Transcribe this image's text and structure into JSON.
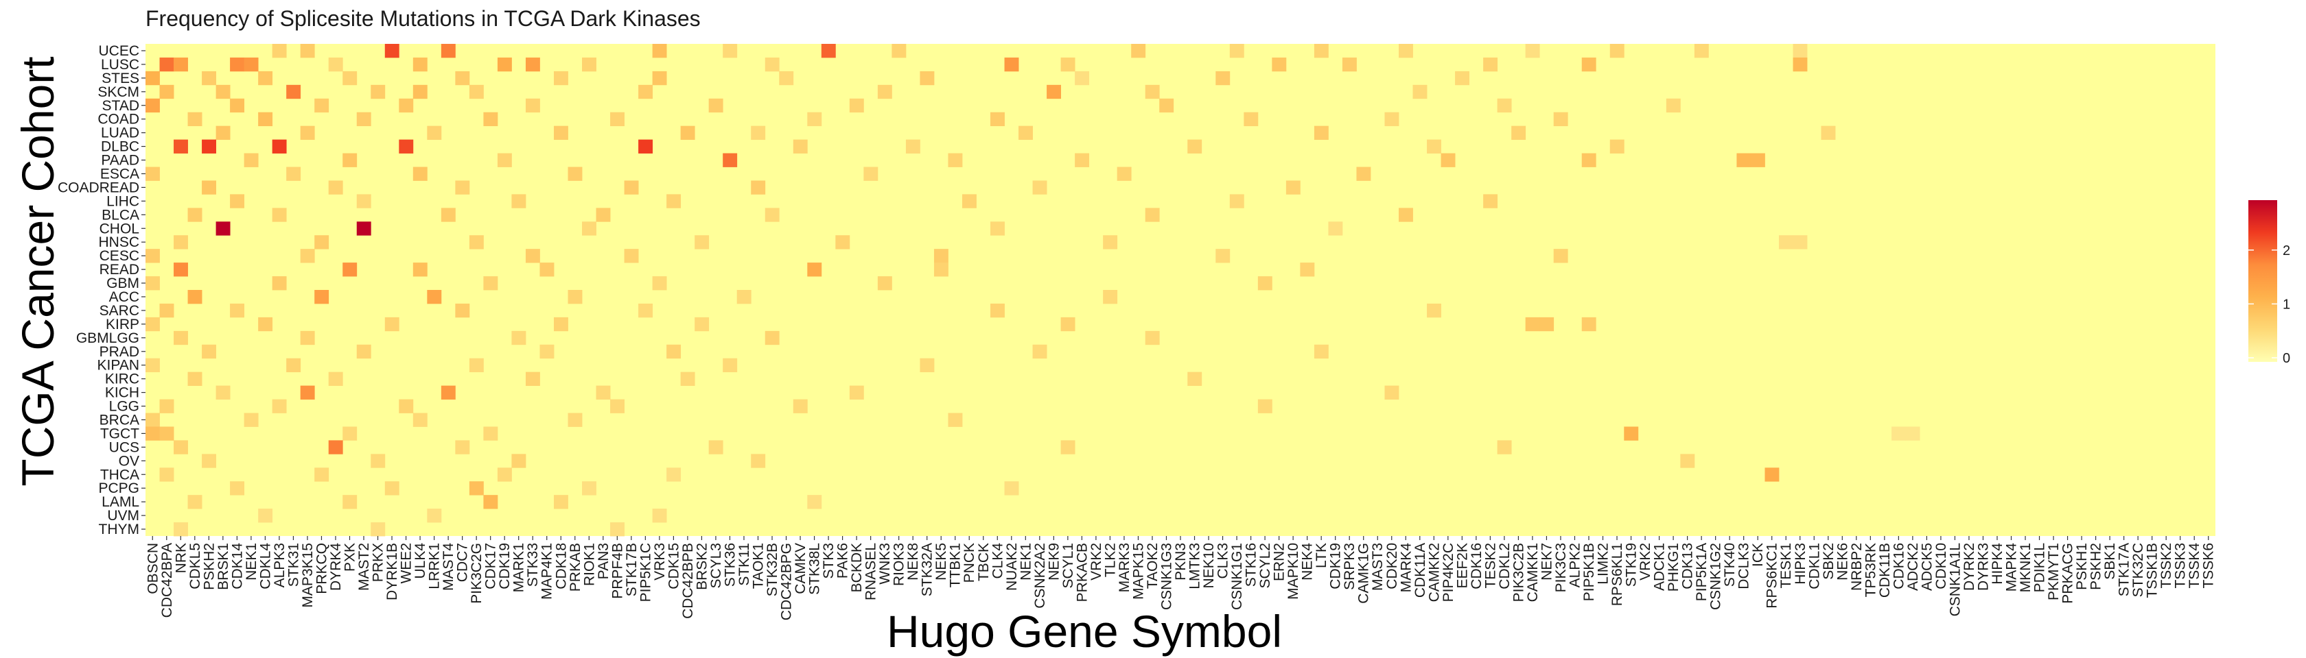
{
  "chart_data": {
    "type": "heatmap",
    "title": "Frequency of Splicesite Mutations in TCGA Dark Kinases",
    "xlabel": "Hugo Gene Symbol",
    "ylabel": "TCGA Cancer Cohort",
    "rows": [
      "UCEC",
      "LUSC",
      "STES",
      "SKCM",
      "STAD",
      "COAD",
      "LUAD",
      "DLBC",
      "PAAD",
      "ESCA",
      "COADREAD",
      "LIHC",
      "BLCA",
      "CHOL",
      "HNSC",
      "CESC",
      "READ",
      "GBM",
      "ACC",
      "SARC",
      "KIRP",
      "GBMLGG",
      "PRAD",
      "KIPAN",
      "KIRC",
      "KICH",
      "LGG",
      "BRCA",
      "TGCT",
      "UCS",
      "OV",
      "THCA",
      "PCPG",
      "LAML",
      "UVM",
      "THYM"
    ],
    "columns": [
      "OBSCN",
      "CDC42BPA",
      "NRK",
      "CDKL5",
      "PSKH2",
      "BRSK1",
      "CDK14",
      "NEK1",
      "CDKL4",
      "ALPK3",
      "STK31",
      "MAP3K15",
      "PRKCQ",
      "DYRK4",
      "PXK",
      "MAST2",
      "PRKX",
      "DYRK1B",
      "WEE2",
      "ULK4",
      "LRRK1",
      "MAST4",
      "CDC7",
      "PIK3C2G",
      "CDK17",
      "CDK19",
      "MARK1",
      "STK33",
      "MAP4K1",
      "CDK18",
      "PRKAB",
      "RIOK1",
      "PAN3",
      "PRPF4B",
      "STK17B",
      "PIP5K1C",
      "VRK3",
      "CDK15",
      "CDC42BPB",
      "BRSK2",
      "SCYL3",
      "STK36",
      "STK11",
      "TAOK1",
      "STK32B",
      "CDC42BPG",
      "CAMKV",
      "STK38L",
      "STK3",
      "PAK6",
      "BCKDK",
      "RNASEL",
      "WNK3",
      "RIOK3",
      "NEK8",
      "STK32A",
      "NEK5",
      "TTBK1",
      "PNCK",
      "TBCK",
      "CLK4",
      "NUAK2",
      "NEK1",
      "CSNK2A2",
      "NEK9",
      "SCYL1",
      "PRKACB",
      "VRK2",
      "TLK2",
      "MARK3",
      "MAPK15",
      "TAOK2",
      "CSNK1G3",
      "PKN3",
      "LMTK3",
      "NEK10",
      "CLK3",
      "CSNK1G1",
      "STK16",
      "SCYL2",
      "ERN2",
      "MAPK10",
      "NEK4",
      "LTK",
      "CDK19",
      "SRPK3",
      "CAMK1G",
      "MAST3",
      "CDK20",
      "MARK4",
      "CDK11A",
      "CAMKK2",
      "PIP4K2C",
      "EEF2K",
      "CDK16",
      "TESK2",
      "CDKL2",
      "PIK3C2B",
      "CAMKK1",
      "NEK7",
      "PIK3C3",
      "ALPK2",
      "PIP5K1B",
      "LIMK2",
      "RPS6KL1",
      "STK19",
      "VRK2",
      "ADCK1",
      "PHKG1",
      "CDK13",
      "PIP5K1A",
      "CSNK1G2",
      "STK40",
      "DCLK3",
      "ICK",
      "RPS6KC1",
      "TESK1",
      "HIPK3",
      "CDKL1",
      "SBK2",
      "NEK6",
      "NRBP2",
      "TP53RK",
      "CDK11B",
      "CDK16",
      "ADCK2",
      "ADCK5",
      "CDK10",
      "CSNK1A1L",
      "DYRK2",
      "DYRK3",
      "HIPK4",
      "MAPK4",
      "MKNK1",
      "PDIK1L",
      "PKMYT1",
      "PRKACG",
      "PSKH1",
      "PSKH2",
      "SBK1",
      "STK17A",
      "STK32C",
      "TSSK1B",
      "TSSK2",
      "TSSK3",
      "TSSK4",
      "TSSK6"
    ],
    "value_range": [
      0,
      3
    ],
    "legend": {
      "position": "right",
      "ticks": [
        0,
        1,
        2
      ],
      "colors": [
        "#FFFFB2",
        "#FED976",
        "#FEB24C",
        "#FD8D3C",
        "#F03B20",
        "#BD0026"
      ]
    },
    "grid": false,
    "background_color": "#FFFF99",
    "hotspots": [
      [
        0,
        9,
        0.7
      ],
      [
        0,
        11,
        0.8
      ],
      [
        0,
        17,
        2.3
      ],
      [
        0,
        21,
        1.9
      ],
      [
        0,
        36,
        1.0
      ],
      [
        0,
        41,
        0.6
      ],
      [
        0,
        48,
        2.1
      ],
      [
        0,
        53,
        0.7
      ],
      [
        0,
        70,
        0.8
      ],
      [
        0,
        77,
        0.6
      ],
      [
        0,
        83,
        0.7
      ],
      [
        0,
        89,
        0.6
      ],
      [
        0,
        98,
        0.5
      ],
      [
        0,
        104,
        0.7
      ],
      [
        0,
        110,
        0.6
      ],
      [
        0,
        117,
        0.5
      ],
      [
        1,
        1,
        2.0
      ],
      [
        1,
        2,
        1.5
      ],
      [
        1,
        6,
        1.8
      ],
      [
        1,
        7,
        1.6
      ],
      [
        1,
        13,
        0.6
      ],
      [
        1,
        19,
        1.0
      ],
      [
        1,
        25,
        1.3
      ],
      [
        1,
        27,
        1.5
      ],
      [
        1,
        31,
        0.7
      ],
      [
        1,
        44,
        0.6
      ],
      [
        1,
        61,
        1.6
      ],
      [
        1,
        65,
        0.7
      ],
      [
        1,
        80,
        0.9
      ],
      [
        1,
        85,
        0.8
      ],
      [
        1,
        95,
        0.7
      ],
      [
        1,
        102,
        1.0
      ],
      [
        1,
        117,
        1.1
      ],
      [
        2,
        0,
        1.2
      ],
      [
        2,
        4,
        0.8
      ],
      [
        2,
        8,
        0.9
      ],
      [
        2,
        14,
        0.7
      ],
      [
        2,
        22,
        0.8
      ],
      [
        2,
        29,
        0.7
      ],
      [
        2,
        36,
        0.9
      ],
      [
        2,
        45,
        0.6
      ],
      [
        2,
        55,
        0.8
      ],
      [
        2,
        66,
        0.5
      ],
      [
        2,
        76,
        0.8
      ],
      [
        2,
        93,
        0.6
      ],
      [
        3,
        1,
        1.0
      ],
      [
        3,
        5,
        0.9
      ],
      [
        3,
        10,
        1.9
      ],
      [
        3,
        16,
        0.8
      ],
      [
        3,
        19,
        1.0
      ],
      [
        3,
        23,
        0.7
      ],
      [
        3,
        35,
        0.8
      ],
      [
        3,
        52,
        0.7
      ],
      [
        3,
        64,
        1.4
      ],
      [
        3,
        71,
        0.7
      ],
      [
        3,
        90,
        0.6
      ],
      [
        4,
        0,
        1.4
      ],
      [
        4,
        6,
        1.0
      ],
      [
        4,
        12,
        0.8
      ],
      [
        4,
        18,
        0.9
      ],
      [
        4,
        27,
        0.7
      ],
      [
        4,
        40,
        0.8
      ],
      [
        4,
        50,
        0.7
      ],
      [
        4,
        72,
        0.8
      ],
      [
        4,
        96,
        0.6
      ],
      [
        4,
        108,
        0.6
      ],
      [
        5,
        3,
        0.8
      ],
      [
        5,
        8,
        1.0
      ],
      [
        5,
        15,
        0.8
      ],
      [
        5,
        24,
        0.9
      ],
      [
        5,
        33,
        0.7
      ],
      [
        5,
        47,
        0.6
      ],
      [
        5,
        60,
        0.8
      ],
      [
        5,
        78,
        0.7
      ],
      [
        5,
        88,
        0.6
      ],
      [
        5,
        100,
        0.7
      ],
      [
        6,
        5,
        0.9
      ],
      [
        6,
        11,
        0.8
      ],
      [
        6,
        20,
        0.7
      ],
      [
        6,
        29,
        0.8
      ],
      [
        6,
        38,
        0.9
      ],
      [
        6,
        43,
        0.6
      ],
      [
        6,
        62,
        0.7
      ],
      [
        6,
        83,
        0.8
      ],
      [
        6,
        97,
        0.7
      ],
      [
        6,
        119,
        0.6
      ],
      [
        7,
        2,
        2.2
      ],
      [
        7,
        4,
        2.4
      ],
      [
        7,
        9,
        2.4
      ],
      [
        7,
        18,
        2.3
      ],
      [
        7,
        35,
        2.4
      ],
      [
        7,
        46,
        0.7
      ],
      [
        7,
        54,
        0.6
      ],
      [
        7,
        74,
        0.7
      ],
      [
        7,
        91,
        0.6
      ],
      [
        7,
        104,
        0.7
      ],
      [
        8,
        7,
        0.8
      ],
      [
        8,
        14,
        0.9
      ],
      [
        8,
        25,
        0.7
      ],
      [
        8,
        41,
        2.0
      ],
      [
        8,
        57,
        0.7
      ],
      [
        8,
        66,
        0.7
      ],
      [
        8,
        92,
        0.9
      ],
      [
        8,
        102,
        0.9
      ],
      [
        8,
        113,
        1.1
      ],
      [
        8,
        114,
        1.1
      ],
      [
        9,
        0,
        0.8
      ],
      [
        9,
        10,
        0.7
      ],
      [
        9,
        19,
        0.9
      ],
      [
        9,
        30,
        0.8
      ],
      [
        9,
        51,
        0.6
      ],
      [
        9,
        69,
        0.7
      ],
      [
        9,
        86,
        0.8
      ],
      [
        10,
        4,
        0.9
      ],
      [
        10,
        13,
        0.7
      ],
      [
        10,
        22,
        0.7
      ],
      [
        10,
        34,
        0.8
      ],
      [
        10,
        43,
        0.8
      ],
      [
        10,
        63,
        0.6
      ],
      [
        10,
        81,
        0.7
      ],
      [
        11,
        6,
        0.8
      ],
      [
        11,
        15,
        0.6
      ],
      [
        11,
        26,
        0.7
      ],
      [
        11,
        37,
        0.7
      ],
      [
        11,
        58,
        0.7
      ],
      [
        11,
        77,
        0.6
      ],
      [
        11,
        95,
        0.7
      ],
      [
        12,
        3,
        0.8
      ],
      [
        12,
        9,
        0.7
      ],
      [
        12,
        21,
        0.8
      ],
      [
        12,
        32,
        0.8
      ],
      [
        12,
        44,
        0.6
      ],
      [
        12,
        71,
        0.7
      ],
      [
        12,
        89,
        0.8
      ],
      [
        13,
        5,
        3.0
      ],
      [
        13,
        15,
        3.0
      ],
      [
        13,
        31,
        0.6
      ],
      [
        13,
        60,
        0.6
      ],
      [
        13,
        84,
        0.5
      ],
      [
        14,
        2,
        0.7
      ],
      [
        14,
        12,
        0.8
      ],
      [
        14,
        23,
        0.7
      ],
      [
        14,
        39,
        0.6
      ],
      [
        14,
        49,
        0.7
      ],
      [
        14,
        68,
        0.6
      ],
      [
        14,
        116,
        0.5
      ],
      [
        14,
        117,
        0.5
      ],
      [
        15,
        0,
        0.8
      ],
      [
        15,
        11,
        0.7
      ],
      [
        15,
        27,
        0.8
      ],
      [
        15,
        34,
        0.7
      ],
      [
        15,
        56,
        0.8
      ],
      [
        15,
        76,
        0.6
      ],
      [
        15,
        100,
        0.7
      ],
      [
        16,
        2,
        1.8
      ],
      [
        16,
        14,
        1.7
      ],
      [
        16,
        19,
        1.0
      ],
      [
        16,
        28,
        0.8
      ],
      [
        16,
        47,
        1.3
      ],
      [
        16,
        56,
        0.7
      ],
      [
        16,
        82,
        0.7
      ],
      [
        17,
        0,
        0.7
      ],
      [
        17,
        9,
        0.8
      ],
      [
        17,
        24,
        0.7
      ],
      [
        17,
        36,
        0.6
      ],
      [
        17,
        52,
        0.7
      ],
      [
        17,
        79,
        0.7
      ],
      [
        18,
        3,
        1.3
      ],
      [
        18,
        12,
        1.5
      ],
      [
        18,
        20,
        1.4
      ],
      [
        18,
        30,
        0.7
      ],
      [
        18,
        42,
        0.6
      ],
      [
        18,
        68,
        0.6
      ],
      [
        19,
        1,
        0.8
      ],
      [
        19,
        6,
        0.7
      ],
      [
        19,
        22,
        0.8
      ],
      [
        19,
        35,
        0.6
      ],
      [
        19,
        60,
        0.7
      ],
      [
        19,
        91,
        0.6
      ],
      [
        20,
        0,
        0.7
      ],
      [
        20,
        8,
        0.8
      ],
      [
        20,
        17,
        0.7
      ],
      [
        20,
        29,
        0.7
      ],
      [
        20,
        39,
        0.6
      ],
      [
        20,
        65,
        0.7
      ],
      [
        20,
        98,
        0.9
      ],
      [
        20,
        99,
        0.9
      ],
      [
        20,
        102,
        0.8
      ],
      [
        21,
        2,
        0.7
      ],
      [
        21,
        11,
        0.7
      ],
      [
        21,
        26,
        0.6
      ],
      [
        21,
        44,
        0.7
      ],
      [
        21,
        71,
        0.6
      ],
      [
        22,
        4,
        0.7
      ],
      [
        22,
        15,
        0.7
      ],
      [
        22,
        28,
        0.6
      ],
      [
        22,
        37,
        0.7
      ],
      [
        22,
        63,
        0.6
      ],
      [
        22,
        83,
        0.6
      ],
      [
        23,
        0,
        0.6
      ],
      [
        23,
        10,
        0.7
      ],
      [
        23,
        23,
        0.6
      ],
      [
        23,
        41,
        0.6
      ],
      [
        23,
        55,
        0.6
      ],
      [
        24,
        3,
        0.7
      ],
      [
        24,
        13,
        0.6
      ],
      [
        24,
        27,
        0.7
      ],
      [
        24,
        38,
        0.6
      ],
      [
        24,
        74,
        0.6
      ],
      [
        25,
        5,
        0.6
      ],
      [
        25,
        11,
        1.7
      ],
      [
        25,
        21,
        1.6
      ],
      [
        25,
        32,
        0.6
      ],
      [
        25,
        50,
        0.6
      ],
      [
        25,
        88,
        0.6
      ],
      [
        26,
        1,
        0.7
      ],
      [
        26,
        9,
        0.6
      ],
      [
        26,
        18,
        0.7
      ],
      [
        26,
        33,
        0.6
      ],
      [
        26,
        46,
        0.6
      ],
      [
        26,
        79,
        0.6
      ],
      [
        27,
        0,
        0.7
      ],
      [
        27,
        7,
        0.6
      ],
      [
        27,
        19,
        0.6
      ],
      [
        27,
        30,
        0.6
      ],
      [
        27,
        57,
        0.6
      ],
      [
        28,
        0,
        1.0
      ],
      [
        28,
        1,
        0.9
      ],
      [
        28,
        14,
        0.6
      ],
      [
        28,
        24,
        0.6
      ],
      [
        28,
        105,
        1.2
      ],
      [
        28,
        124,
        0.4
      ],
      [
        28,
        125,
        0.4
      ],
      [
        29,
        2,
        0.7
      ],
      [
        29,
        13,
        1.9
      ],
      [
        29,
        22,
        0.6
      ],
      [
        29,
        40,
        0.6
      ],
      [
        29,
        65,
        0.6
      ],
      [
        29,
        96,
        0.6
      ],
      [
        30,
        4,
        0.6
      ],
      [
        30,
        16,
        0.6
      ],
      [
        30,
        26,
        0.7
      ],
      [
        30,
        43,
        0.6
      ],
      [
        30,
        109,
        0.6
      ],
      [
        31,
        1,
        0.6
      ],
      [
        31,
        12,
        0.6
      ],
      [
        31,
        25,
        0.6
      ],
      [
        31,
        37,
        0.5
      ],
      [
        31,
        115,
        1.3
      ],
      [
        32,
        6,
        0.6
      ],
      [
        32,
        17,
        0.6
      ],
      [
        32,
        23,
        1.0
      ],
      [
        32,
        31,
        0.5
      ],
      [
        32,
        61,
        0.5
      ],
      [
        33,
        3,
        0.6
      ],
      [
        33,
        14,
        0.6
      ],
      [
        33,
        24,
        1.1
      ],
      [
        33,
        29,
        0.6
      ],
      [
        33,
        47,
        0.5
      ],
      [
        34,
        8,
        0.5
      ],
      [
        34,
        20,
        0.5
      ],
      [
        34,
        36,
        0.5
      ],
      [
        35,
        2,
        0.5
      ],
      [
        35,
        16,
        0.5
      ],
      [
        35,
        33,
        0.5
      ]
    ]
  }
}
